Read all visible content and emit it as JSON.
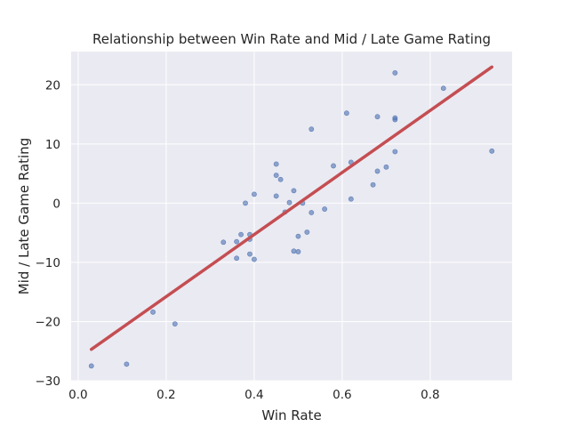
{
  "chart_data": {
    "type": "scatter",
    "title": "Relationship between Win Rate and Mid / Late Game Rating",
    "xlabel": "Win Rate",
    "ylabel": "Mid / Late Game Rating",
    "xlim": [
      -0.016,
      0.986
    ],
    "ylim": [
      -30,
      25.6
    ],
    "xticks": [
      0.0,
      0.2,
      0.4,
      0.6,
      0.8
    ],
    "xtick_labels": [
      "0.0",
      "0.2",
      "0.4",
      "0.6",
      "0.8"
    ],
    "yticks": [
      -30,
      -20,
      -10,
      0,
      10,
      20
    ],
    "ytick_labels": [
      "−30",
      "−20",
      "−10",
      "0",
      "10",
      "20"
    ],
    "grid": true,
    "colors": {
      "background": "#eaeaf2",
      "grid": "#ffffff",
      "points": "#4c72b0",
      "fit_line": "#c44e52"
    },
    "series": [
      {
        "points": [
          [
            0.03,
            -27.5
          ],
          [
            0.11,
            -27.2
          ],
          [
            0.17,
            -18.4
          ],
          [
            0.22,
            -20.4
          ],
          [
            0.33,
            -6.6
          ],
          [
            0.36,
            -6.5
          ],
          [
            0.36,
            -9.3
          ],
          [
            0.37,
            -5.3
          ],
          [
            0.38,
            0.0
          ],
          [
            0.39,
            -6.1
          ],
          [
            0.39,
            -8.6
          ],
          [
            0.39,
            -5.3
          ],
          [
            0.4,
            -9.5
          ],
          [
            0.4,
            1.5
          ],
          [
            0.45,
            6.6
          ],
          [
            0.45,
            4.7
          ],
          [
            0.45,
            1.2
          ],
          [
            0.46,
            4.0
          ],
          [
            0.47,
            -1.5
          ],
          [
            0.48,
            0.1
          ],
          [
            0.49,
            2.1
          ],
          [
            0.49,
            -8.1
          ],
          [
            0.5,
            -8.2
          ],
          [
            0.5,
            -5.6
          ],
          [
            0.51,
            0.0
          ],
          [
            0.52,
            -4.9
          ],
          [
            0.53,
            -1.6
          ],
          [
            0.53,
            12.5
          ],
          [
            0.56,
            -1.0
          ],
          [
            0.58,
            6.3
          ],
          [
            0.61,
            15.2
          ],
          [
            0.62,
            6.9
          ],
          [
            0.62,
            0.7
          ],
          [
            0.67,
            3.1
          ],
          [
            0.68,
            14.6
          ],
          [
            0.68,
            5.4
          ],
          [
            0.7,
            6.1
          ],
          [
            0.72,
            14.4
          ],
          [
            0.72,
            14.1
          ],
          [
            0.72,
            8.7
          ],
          [
            0.72,
            22.0
          ],
          [
            0.83,
            19.4
          ],
          [
            0.94,
            8.8
          ]
        ]
      },
      {
        "type": "line",
        "points": [
          [
            0.03,
            -24.7
          ],
          [
            0.94,
            23.0
          ]
        ]
      }
    ]
  }
}
